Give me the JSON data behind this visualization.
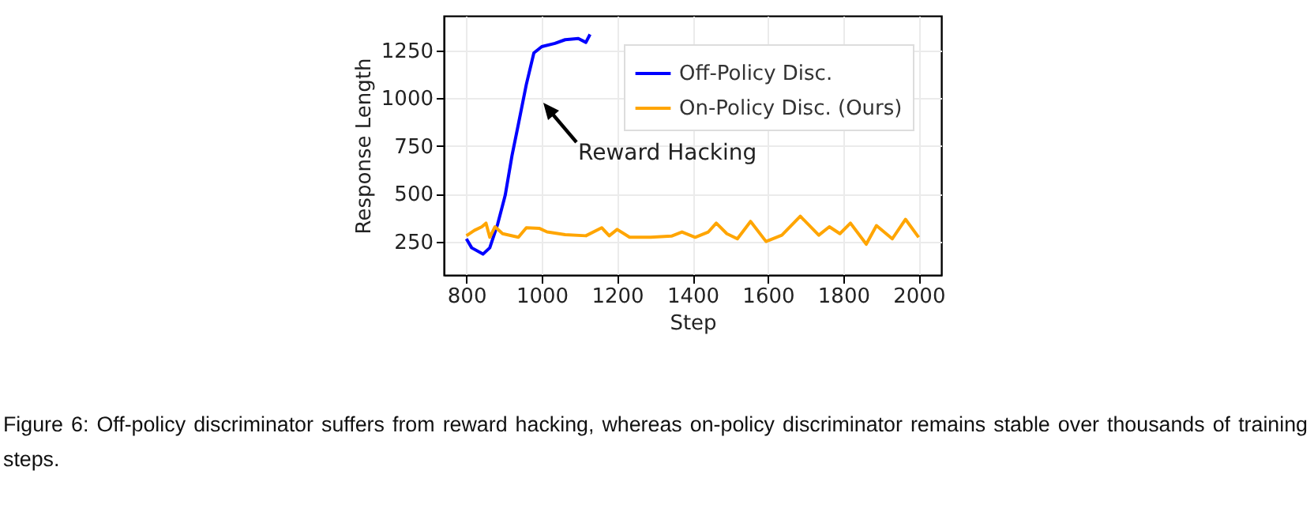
{
  "chart_data": {
    "type": "line",
    "xlabel": "Step",
    "ylabel": "Response Length",
    "x": [
      800,
      814,
      844,
      862,
      883,
      903,
      921,
      938,
      959,
      979,
      1000,
      1035,
      1062,
      1097,
      1117,
      1128
    ],
    "series": [
      {
        "name": "Off-Policy Disc.",
        "color": "#0000ff",
        "values": [
          264,
          217,
          184,
          217,
          341,
          492,
          699,
          864,
          1071,
          1236,
          1269,
          1286,
          1305,
          1311,
          1291,
          1333
        ]
      },
      {
        "name": "On-Policy Disc. (Ours)",
        "color": "#ffa500",
        "x": [
          800,
          821,
          841,
          852,
          862,
          876,
          896,
          938,
          959,
          993,
          1014,
          1062,
          1117,
          1159,
          1179,
          1200,
          1233,
          1289,
          1344,
          1372,
          1407,
          1442,
          1463,
          1491,
          1519,
          1554,
          1595,
          1637,
          1686,
          1735,
          1763,
          1791,
          1819,
          1861,
          1888,
          1930,
          1965,
          2000
        ],
        "values": [
          280,
          308,
          327,
          346,
          272,
          327,
          291,
          272,
          322,
          319,
          300,
          286,
          280,
          322,
          280,
          313,
          272,
          272,
          278,
          300,
          272,
          300,
          346,
          291,
          264,
          355,
          250,
          283,
          382,
          283,
          327,
          291,
          346,
          236,
          333,
          264,
          366,
          272
        ]
      }
    ],
    "xlim": [
      740,
      2060
    ],
    "xticks": [
      800,
      1000,
      1200,
      1400,
      1600,
      1800,
      2000
    ],
    "ylim": [
      75,
      1430
    ],
    "yticks": [
      250,
      500,
      750,
      1000,
      1250
    ],
    "grid": true,
    "legend": "top right",
    "annotations": [
      "Reward Hacking",
      "Figure 6: Off-policy discriminator suffers from reward hacking, whereas on-policy discriminator remains stable over thousands of training steps."
    ]
  }
}
